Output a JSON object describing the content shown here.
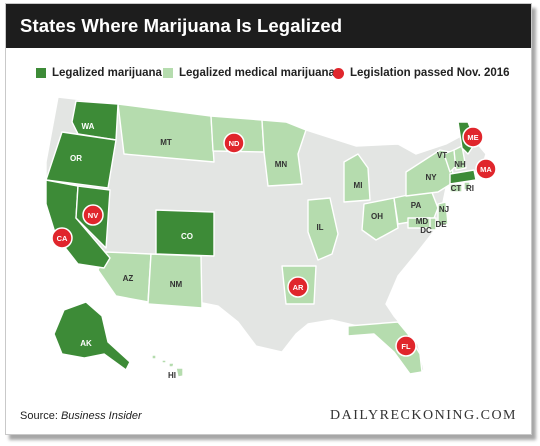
{
  "title": "States Where Marijuana Is Legalized",
  "legend": [
    {
      "label": "Legalized marijuana",
      "color": "#3d8b37",
      "marker": "square"
    },
    {
      "label": "Legalized medical marijuana",
      "color": "#b5dcae",
      "marker": "square"
    },
    {
      "label": "Legislation passed Nov. 2016",
      "color": "#e0262c",
      "marker": "circle"
    }
  ],
  "colors": {
    "recreational": "#3d8b37",
    "medical": "#b5dcae",
    "none": "#e3e5e3",
    "border": "#ffffff",
    "marker": "#e0262c"
  },
  "map_labels": {
    "WA": "WA",
    "OR": "OR",
    "MT": "MT",
    "MN": "MN",
    "MI": "MI",
    "NY": "NY",
    "VT": "VT",
    "NH": "NH",
    "IL": "IL",
    "OH": "OH",
    "PA": "PA",
    "NJ": "NJ",
    "MD": "MD",
    "DC": "DC",
    "DE": "DE",
    "CT": "CT",
    "RI": "RI",
    "CO": "CO",
    "AZ": "AZ",
    "NM": "NM",
    "AK": "AK",
    "HI": "HI"
  },
  "markers": [
    "ND",
    "ME",
    "MA",
    "NV",
    "CA",
    "AR",
    "FL"
  ],
  "footer": {
    "source_prefix": "Source: ",
    "source_name": "Business Insider",
    "brand": "DAILYRECKONING.COM"
  }
}
